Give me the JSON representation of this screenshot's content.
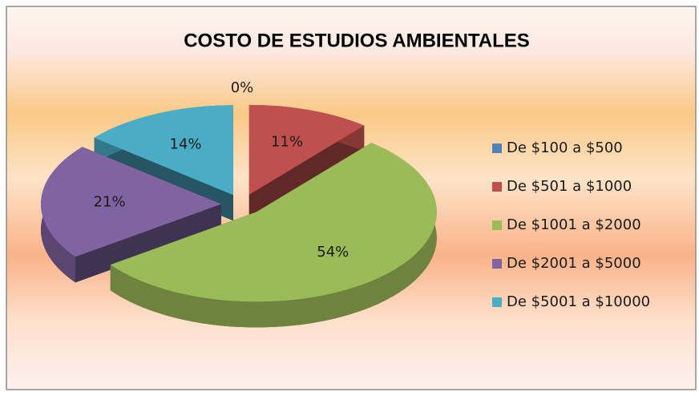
{
  "chart_data": {
    "type": "pie3d",
    "title": "COSTO DE ESTUDIOS AMBIENTALES",
    "categories": [
      "De $100 a $500",
      "De $501 a $1000",
      "De $1001 a $2000",
      "De $2001 a $5000",
      "De $5001 a $10000"
    ],
    "values": [
      0,
      11,
      54,
      21,
      14
    ],
    "value_labels": [
      "0%",
      "11%",
      "54%",
      "21%",
      "14%"
    ],
    "colors": [
      "#4f81bd",
      "#c0504d",
      "#9bbb59",
      "#8064a2",
      "#4bacc6"
    ],
    "legend": "right"
  }
}
